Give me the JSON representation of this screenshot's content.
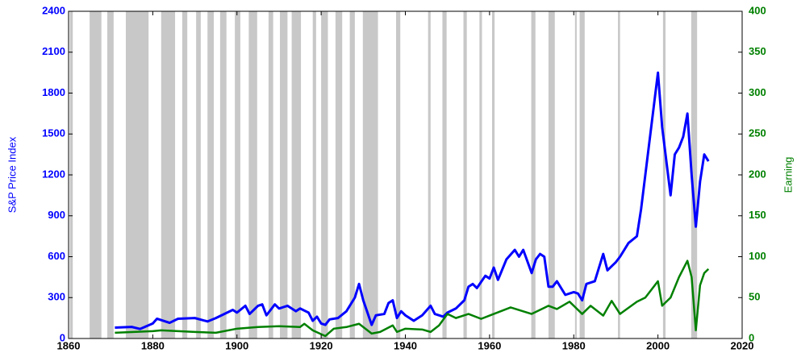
{
  "chart_data": {
    "type": "line",
    "y_label": "S&P Price Index",
    "y2_label": "Earning",
    "xlim": [
      1860,
      2020
    ],
    "xticks": [
      1860,
      1880,
      1900,
      1920,
      1940,
      1960,
      1980,
      2000,
      2020
    ],
    "ylim": [
      0,
      2400
    ],
    "yticks": [
      0,
      300,
      600,
      900,
      1200,
      1500,
      1800,
      2100,
      2400
    ],
    "y2lim": [
      0,
      400
    ],
    "y2ticks": [
      0,
      50,
      100,
      150,
      200,
      250,
      300,
      350,
      400
    ],
    "y_color": "#0000ff",
    "y2_color": "#008000",
    "shade_color": "#c8c8c8",
    "recessions": [
      [
        1860.3,
        1861
      ],
      [
        1865,
        1867.8
      ],
      [
        1869.2,
        1870.7
      ],
      [
        1873.6,
        1879
      ],
      [
        1882,
        1885.3
      ],
      [
        1887,
        1888.2
      ],
      [
        1890.3,
        1891.4
      ],
      [
        1893,
        1894.5
      ],
      [
        1896,
        1897.5
      ],
      [
        1899.5,
        1900.8
      ],
      [
        1902.8,
        1904.8
      ],
      [
        1907.5,
        1908.6
      ],
      [
        1910.2,
        1912
      ],
      [
        1913,
        1915.2
      ],
      [
        1918,
        1918.8
      ],
      [
        1920,
        1921.6
      ],
      [
        1923.4,
        1925
      ],
      [
        1926.8,
        1928
      ],
      [
        1929.9,
        1933.5
      ],
      [
        1937.8,
        1938.8
      ],
      [
        1945.4,
        1946
      ],
      [
        1948.8,
        1949.8
      ],
      [
        1953.8,
        1954.6
      ],
      [
        1957.6,
        1958.2
      ],
      [
        1960.6,
        1961.2
      ],
      [
        1969.9,
        1970.9
      ],
      [
        1974,
        1975.5
      ],
      [
        1980.3,
        1980.7
      ],
      [
        1981.4,
        1982.6
      ],
      [
        1990.5,
        1991
      ],
      [
        2001.2,
        2001.8
      ],
      [
        2007.9,
        2009.3
      ]
    ],
    "series": [
      {
        "name": "S&P Price Index",
        "color": "#0000ff",
        "x": [
          1871,
          1875,
          1877,
          1880,
          1881,
          1884,
          1886,
          1890,
          1893,
          1895,
          1899,
          1900,
          1902,
          1903,
          1905,
          1906,
          1907,
          1909,
          1910,
          1912,
          1914,
          1915,
          1917,
          1918,
          1919,
          1920,
          1921,
          1922,
          1924,
          1926,
          1928,
          1929,
          1930,
          1932,
          1933,
          1935,
          1936,
          1937,
          1938,
          1939,
          1940,
          1942,
          1944,
          1946,
          1947,
          1949,
          1950,
          1952,
          1954,
          1955,
          1956,
          1957,
          1959,
          1960,
          1961,
          1962,
          1964,
          1966,
          1967,
          1968,
          1970,
          1971,
          1972,
          1973,
          1974,
          1975,
          1976,
          1978,
          1980,
          1981,
          1982,
          1983,
          1985,
          1987,
          1988,
          1990,
          1991,
          1993,
          1995,
          1996,
          1997,
          1998,
          1999,
          2000,
          2001,
          2002,
          2003,
          2004,
          2005,
          2006,
          2007,
          2008,
          2009,
          2010,
          2011,
          2012
        ],
        "values": [
          80,
          85,
          70,
          110,
          145,
          115,
          145,
          150,
          125,
          150,
          210,
          190,
          240,
          180,
          240,
          250,
          170,
          250,
          220,
          240,
          200,
          220,
          190,
          130,
          160,
          110,
          100,
          140,
          150,
          200,
          300,
          400,
          280,
          100,
          170,
          180,
          260,
          280,
          150,
          200,
          170,
          130,
          170,
          240,
          180,
          160,
          190,
          220,
          280,
          380,
          400,
          370,
          460,
          440,
          520,
          430,
          580,
          650,
          600,
          650,
          480,
          580,
          620,
          600,
          380,
          380,
          420,
          320,
          340,
          330,
          280,
          400,
          420,
          620,
          500,
          560,
          600,
          700,
          750,
          950,
          1200,
          1450,
          1700,
          1950,
          1550,
          1300,
          1050,
          1350,
          1400,
          1480,
          1650,
          1200,
          820,
          1150,
          1350,
          1300
        ]
      },
      {
        "name": "Earning",
        "color": "#008000",
        "axis": "y2",
        "x": [
          1871,
          1880,
          1882,
          1890,
          1895,
          1900,
          1905,
          1910,
          1915,
          1916,
          1918,
          1921,
          1923,
          1926,
          1929,
          1932,
          1934,
          1937,
          1938,
          1940,
          1944,
          1946,
          1948,
          1950,
          1952,
          1955,
          1958,
          1960,
          1965,
          1970,
          1974,
          1976,
          1979,
          1982,
          1984,
          1987,
          1989,
          1991,
          1995,
          1997,
          2000,
          2001,
          2003,
          2005,
          2007,
          2008,
          2009,
          2010,
          2011,
          2012
        ],
        "values": [
          7,
          9,
          10,
          8,
          7,
          12,
          14,
          15,
          14,
          18,
          10,
          3,
          12,
          14,
          18,
          6,
          8,
          16,
          8,
          12,
          11,
          8,
          16,
          30,
          25,
          30,
          24,
          28,
          38,
          30,
          40,
          36,
          45,
          30,
          40,
          28,
          46,
          30,
          45,
          50,
          70,
          40,
          50,
          75,
          95,
          75,
          10,
          65,
          80,
          85
        ]
      }
    ]
  }
}
